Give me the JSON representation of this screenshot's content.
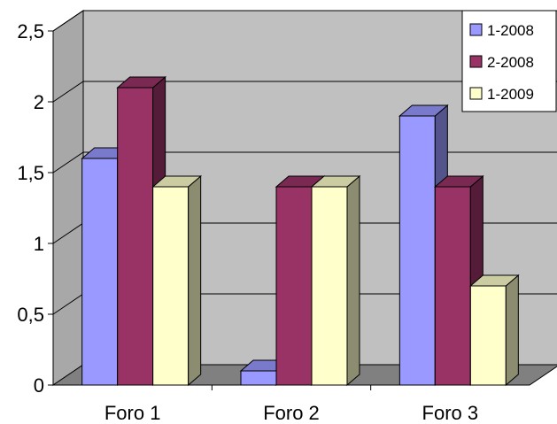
{
  "chart_data": {
    "type": "bar",
    "style": "3d-clustered-column",
    "categories": [
      "Foro 1",
      "Foro 2",
      "Foro 3"
    ],
    "series": [
      {
        "name": "1-2008",
        "values": [
          1.6,
          0.1,
          1.9
        ],
        "color": "#9999ff"
      },
      {
        "name": "2-2008",
        "values": [
          2.1,
          1.4,
          1.4
        ],
        "color": "#993366"
      },
      {
        "name": "1-2009",
        "values": [
          1.4,
          1.4,
          0.7
        ],
        "color": "#ffffcc"
      }
    ],
    "y_ticks": [
      "0",
      "0,5",
      "1",
      "1,5",
      "2",
      "2,5"
    ],
    "ylim": [
      0,
      2.5
    ],
    "grid": true,
    "legend_position": "top-right",
    "wall_color": "#c0c0c0",
    "floor_color": "#808080"
  }
}
